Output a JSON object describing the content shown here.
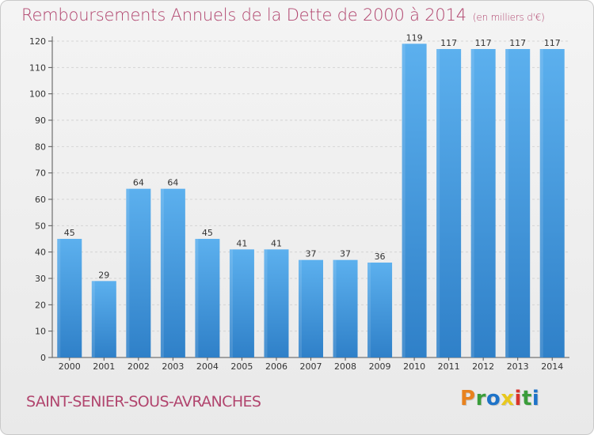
{
  "header": {
    "title": "Remboursements Annuels de la Dette de 2000 à 2014",
    "subtitle": "(en milliers d'€)"
  },
  "footer": {
    "commune": "SAINT-SENIER-SOUS-AVRANCHES",
    "logo_letters": [
      "P",
      "r",
      "o",
      "x",
      "i",
      "t",
      "i"
    ],
    "logo_colors": [
      "#e8821e",
      "#3a9d3a",
      "#1e73c8",
      "#e8c81e",
      "#d9342b",
      "#3a9d3a",
      "#1e73c8"
    ]
  },
  "chart_data": {
    "type": "bar",
    "title": "Remboursements Annuels de la Dette de 2000 à 2014",
    "categories": [
      "2000",
      "2001",
      "2002",
      "2003",
      "2004",
      "2005",
      "2006",
      "2007",
      "2008",
      "2009",
      "2010",
      "2011",
      "2012",
      "2013",
      "2014"
    ],
    "values": [
      45,
      29,
      64,
      64,
      45,
      41,
      41,
      37,
      37,
      36,
      119,
      117,
      117,
      117,
      117
    ],
    "ylim": [
      0,
      120
    ],
    "yticks": [
      0,
      10,
      20,
      30,
      40,
      50,
      60,
      70,
      80,
      90,
      100,
      110,
      120
    ],
    "grid": true,
    "bar_color": "#3b8fd6",
    "bar_color_light": "#5cadea"
  }
}
